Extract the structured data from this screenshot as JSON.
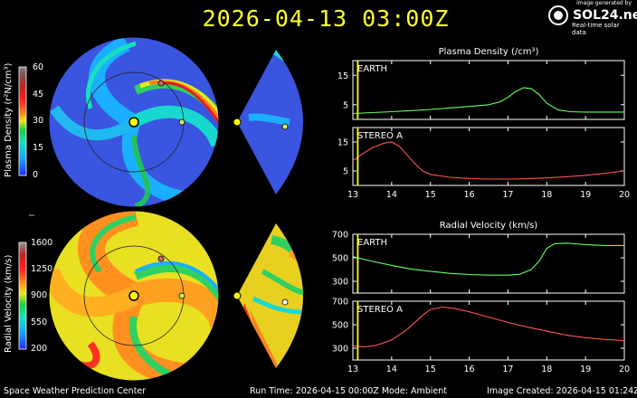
{
  "title": "2026-04-13  03:00Z",
  "logo": {
    "generated_by": "image generated by",
    "name": "SOL24.net",
    "tagline": "Real-time solar data"
  },
  "footer": {
    "left": "Space Weather Prediction Center",
    "center": "Run Time: 2026-04-15 00:00Z  Mode: Ambient",
    "right": "Image Created: 2026-04-15 01:24Z"
  },
  "colorbars": {
    "density": {
      "label": "Plasma Density (r²N/cm³)",
      "ticks": [
        "60",
        "45",
        "30",
        "15",
        "0"
      ]
    },
    "velocity": {
      "label": "Radial Velocity (km/s)",
      "ticks": [
        "1600",
        "1250",
        "900",
        "550",
        "200"
      ]
    }
  },
  "colors": {
    "earth_line": "#66ff66",
    "stereo_line": "#ff5555",
    "marker": "#ffff00",
    "frame": "#ffffff"
  },
  "chart_data": [
    {
      "type": "line",
      "title": "Plasma Density (/cm³)",
      "panel": "EARTH",
      "xlim": [
        13,
        20
      ],
      "ylim": [
        0,
        20
      ],
      "yticks": [
        5,
        15
      ],
      "x": [
        13.0,
        13.5,
        14.0,
        14.5,
        15.0,
        15.5,
        16.0,
        16.5,
        16.8,
        17.0,
        17.2,
        17.4,
        17.6,
        17.8,
        18.0,
        18.3,
        18.6,
        19.0,
        19.5,
        20.0
      ],
      "y": [
        2.0,
        2.3,
        2.6,
        3.0,
        3.4,
        3.9,
        4.4,
        5.0,
        6.0,
        7.5,
        9.5,
        10.8,
        10.5,
        8.5,
        5.5,
        3.2,
        2.6,
        2.5,
        2.5,
        2.5
      ]
    },
    {
      "type": "line",
      "panel": "STEREO A",
      "xlim": [
        13,
        20
      ],
      "ylim": [
        0,
        20
      ],
      "yticks": [
        5,
        15
      ],
      "x": [
        13.0,
        13.2,
        13.5,
        13.8,
        14.0,
        14.2,
        14.4,
        14.6,
        14.8,
        15.0,
        15.5,
        16.0,
        16.5,
        17.0,
        17.5,
        18.0,
        18.5,
        19.0,
        19.5,
        20.0
      ],
      "y": [
        8.5,
        10.5,
        13.0,
        14.6,
        15.0,
        13.5,
        10.5,
        7.5,
        5.0,
        3.8,
        2.8,
        2.4,
        2.2,
        2.2,
        2.3,
        2.6,
        3.0,
        3.5,
        4.2,
        5.0
      ]
    },
    {
      "type": "line",
      "title": "Radial Velocity (km/s)",
      "panel": "EARTH",
      "xlim": [
        13,
        20
      ],
      "ylim": [
        200,
        700
      ],
      "yticks": [
        300,
        500,
        700
      ],
      "x": [
        13.0,
        13.5,
        14.0,
        14.5,
        15.0,
        15.5,
        16.0,
        16.5,
        17.0,
        17.3,
        17.6,
        17.8,
        18.0,
        18.2,
        18.5,
        19.0,
        19.5,
        20.0
      ],
      "y": [
        510,
        470,
        435,
        405,
        385,
        368,
        358,
        352,
        352,
        360,
        400,
        470,
        580,
        620,
        625,
        612,
        605,
        605
      ]
    },
    {
      "type": "line",
      "panel": "STEREO A",
      "xlim": [
        13,
        20
      ],
      "ylim": [
        200,
        700
      ],
      "yticks": [
        300,
        500,
        700
      ],
      "x": [
        13.0,
        13.3,
        13.6,
        14.0,
        14.4,
        14.8,
        15.0,
        15.3,
        15.6,
        16.0,
        16.5,
        17.0,
        17.5,
        18.0,
        18.5,
        19.0,
        19.5,
        20.0
      ],
      "y": [
        320,
        312,
        325,
        370,
        460,
        580,
        630,
        650,
        640,
        610,
        565,
        520,
        480,
        445,
        412,
        390,
        375,
        365
      ]
    }
  ]
}
